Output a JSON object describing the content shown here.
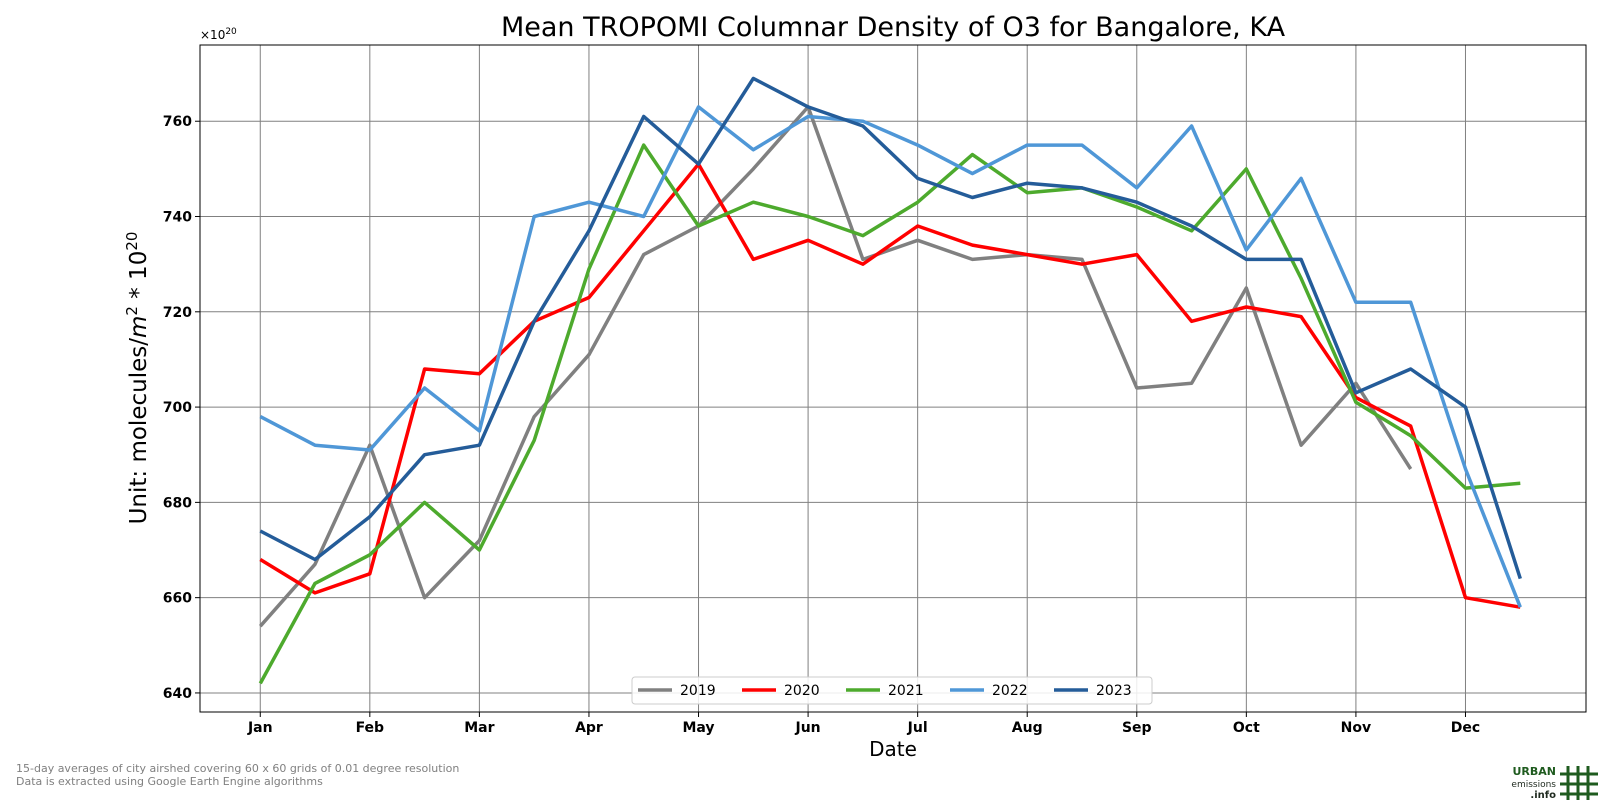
{
  "chart_data": {
    "type": "line",
    "title": "Mean TROPOMI Columnar Density of O3 for Bangalore, KA",
    "xlabel": "Date",
    "ylabel_prefix": "Unit: molecules/",
    "ylabel_unit_base": "m",
    "ylabel_unit_exp": "2",
    "ylabel_mid": " * 10",
    "ylabel_exp": "20",
    "offset_base": "×10",
    "offset_exp": "20",
    "ylim": [
      636,
      776
    ],
    "yticks": [
      640,
      660,
      680,
      700,
      720,
      740,
      760
    ],
    "xlim": [
      -0.55,
      12.1
    ],
    "xtick_positions": [
      0,
      1,
      2,
      3,
      4,
      5,
      6,
      7,
      8,
      9,
      10,
      11
    ],
    "xtick_labels": [
      "Jan",
      "Feb",
      "Mar",
      "Apr",
      "May",
      "Jun",
      "Jul",
      "Aug",
      "Sep",
      "Oct",
      "Nov",
      "Dec"
    ],
    "grid": true,
    "legend_position": "lower-center",
    "x": [
      0,
      0.5,
      1,
      1.5,
      2,
      2.5,
      3,
      3.5,
      4,
      4.5,
      5,
      5.5,
      6,
      6.5,
      7,
      7.5,
      8,
      8.5,
      9,
      9.5,
      10,
      10.5,
      11,
      11.5
    ],
    "series": [
      {
        "name": "2019",
        "color": "#808080",
        "values": [
          654,
          667,
          692,
          660,
          672,
          698,
          711,
          732,
          738,
          750,
          763,
          731,
          735,
          731,
          732,
          731,
          704,
          705,
          725,
          692,
          705,
          687,
          null,
          null
        ]
      },
      {
        "name": "2020",
        "color": "#ff0000",
        "values": [
          668,
          661,
          665,
          708,
          707,
          718,
          723,
          737,
          751,
          731,
          735,
          730,
          738,
          734,
          732,
          730,
          732,
          718,
          721,
          719,
          702,
          696,
          660,
          658
        ]
      },
      {
        "name": "2021",
        "color": "#4daa2d",
        "values": [
          642,
          663,
          669,
          680,
          670,
          693,
          729,
          755,
          738,
          743,
          740,
          736,
          743,
          753,
          745,
          746,
          742,
          737,
          750,
          727,
          701,
          694,
          683,
          684
        ]
      },
      {
        "name": "2022",
        "color": "#4f97d7",
        "values": [
          698,
          692,
          691,
          704,
          695,
          740,
          743,
          740,
          763,
          754,
          761,
          760,
          755,
          749,
          755,
          755,
          746,
          759,
          733,
          748,
          722,
          722,
          687,
          658
        ]
      },
      {
        "name": "2023",
        "color": "#245c99",
        "values": [
          674,
          668,
          677,
          690,
          692,
          718,
          737,
          761,
          751,
          769,
          763,
          759,
          748,
          744,
          747,
          746,
          743,
          738,
          731,
          731,
          703,
          708,
          700,
          664
        ]
      }
    ]
  },
  "footnotes": [
    "15-day averages of city airshed covering 60 x 60 grids of 0.01 degree resolution",
    "Data is extracted using Google Earth Engine algorithms"
  ],
  "logo": {
    "line1": "URBAN",
    "line2": "emissions",
    "line3": ".info",
    "color": "#1f5b1f"
  }
}
